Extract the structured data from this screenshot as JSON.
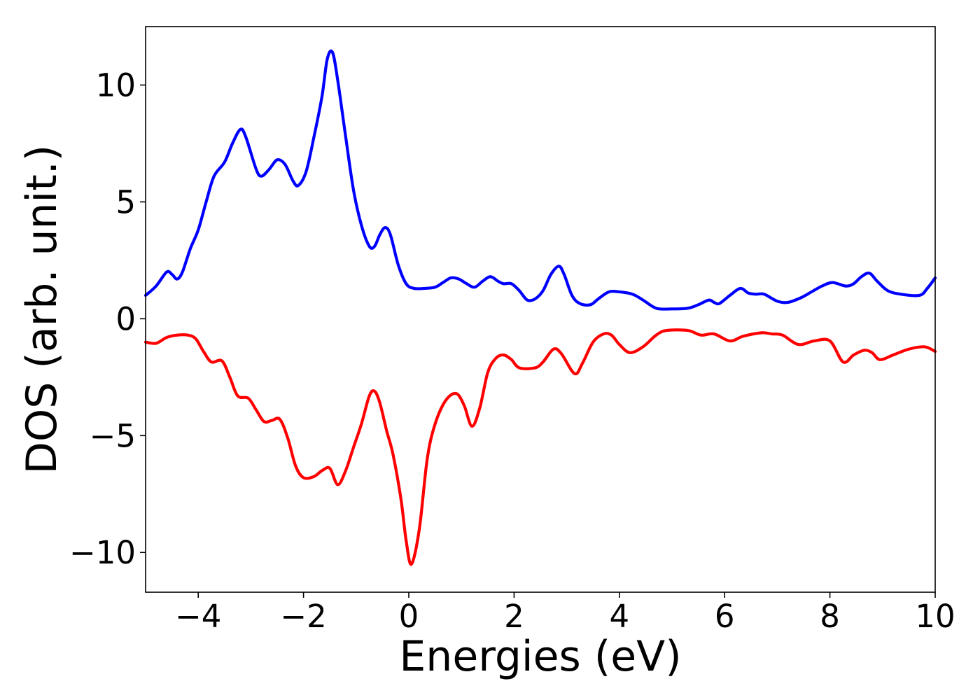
{
  "chart_data": {
    "type": "line",
    "title": "",
    "xlabel": "Energies (eV)",
    "ylabel": "DOS (arb. unit.)",
    "xlim": [
      -5,
      10
    ],
    "ylim": [
      -11.7,
      12.5
    ],
    "grid": false,
    "legend": "none",
    "x_ticks": [
      {
        "value": -4,
        "label": "−4"
      },
      {
        "value": -2,
        "label": "−2"
      },
      {
        "value": 0,
        "label": "0"
      },
      {
        "value": 2,
        "label": "2"
      },
      {
        "value": 4,
        "label": "4"
      },
      {
        "value": 6,
        "label": "6"
      },
      {
        "value": 8,
        "label": "8"
      },
      {
        "value": 10,
        "label": "10"
      }
    ],
    "y_ticks": [
      {
        "value": -10,
        "label": "−10"
      },
      {
        "value": -5,
        "label": "−5"
      },
      {
        "value": 0,
        "label": "0"
      },
      {
        "value": 5,
        "label": "5"
      },
      {
        "value": 10,
        "label": "10"
      }
    ],
    "series": [
      {
        "color": "#0000ff",
        "points": [
          [
            -5.0,
            1.0
          ],
          [
            -4.8,
            1.4
          ],
          [
            -4.6,
            2.0
          ],
          [
            -4.5,
            1.9
          ],
          [
            -4.4,
            1.7
          ],
          [
            -4.3,
            2.0
          ],
          [
            -4.15,
            3.0
          ],
          [
            -4.0,
            3.8
          ],
          [
            -3.85,
            5.0
          ],
          [
            -3.7,
            6.1
          ],
          [
            -3.5,
            6.7
          ],
          [
            -3.35,
            7.5
          ],
          [
            -3.2,
            8.1
          ],
          [
            -3.1,
            7.8
          ],
          [
            -2.9,
            6.4
          ],
          [
            -2.8,
            6.1
          ],
          [
            -2.65,
            6.4
          ],
          [
            -2.5,
            6.8
          ],
          [
            -2.35,
            6.6
          ],
          [
            -2.2,
            5.9
          ],
          [
            -2.1,
            5.7
          ],
          [
            -1.95,
            6.3
          ],
          [
            -1.8,
            7.8
          ],
          [
            -1.65,
            9.5
          ],
          [
            -1.55,
            11.1
          ],
          [
            -1.45,
            11.4
          ],
          [
            -1.35,
            10.2
          ],
          [
            -1.2,
            7.8
          ],
          [
            -1.05,
            5.5
          ],
          [
            -0.9,
            4.0
          ],
          [
            -0.75,
            3.1
          ],
          [
            -0.65,
            3.1
          ],
          [
            -0.55,
            3.6
          ],
          [
            -0.45,
            3.9
          ],
          [
            -0.35,
            3.6
          ],
          [
            -0.2,
            2.3
          ],
          [
            -0.05,
            1.5
          ],
          [
            0.1,
            1.3
          ],
          [
            0.3,
            1.3
          ],
          [
            0.5,
            1.35
          ],
          [
            0.65,
            1.55
          ],
          [
            0.8,
            1.75
          ],
          [
            0.95,
            1.7
          ],
          [
            1.1,
            1.5
          ],
          [
            1.25,
            1.35
          ],
          [
            1.4,
            1.6
          ],
          [
            1.55,
            1.8
          ],
          [
            1.7,
            1.6
          ],
          [
            1.8,
            1.5
          ],
          [
            1.95,
            1.5
          ],
          [
            2.1,
            1.2
          ],
          [
            2.25,
            0.8
          ],
          [
            2.4,
            0.85
          ],
          [
            2.55,
            1.2
          ],
          [
            2.7,
            1.9
          ],
          [
            2.85,
            2.25
          ],
          [
            2.95,
            1.9
          ],
          [
            3.1,
            1.0
          ],
          [
            3.25,
            0.65
          ],
          [
            3.45,
            0.6
          ],
          [
            3.6,
            0.85
          ],
          [
            3.8,
            1.15
          ],
          [
            4.0,
            1.15
          ],
          [
            4.25,
            1.05
          ],
          [
            4.45,
            0.8
          ],
          [
            4.7,
            0.45
          ],
          [
            5.0,
            0.42
          ],
          [
            5.3,
            0.45
          ],
          [
            5.5,
            0.6
          ],
          [
            5.7,
            0.8
          ],
          [
            5.8,
            0.7
          ],
          [
            5.9,
            0.65
          ],
          [
            6.1,
            1.0
          ],
          [
            6.3,
            1.3
          ],
          [
            6.45,
            1.1
          ],
          [
            6.6,
            1.05
          ],
          [
            6.75,
            1.05
          ],
          [
            7.0,
            0.75
          ],
          [
            7.2,
            0.7
          ],
          [
            7.45,
            0.9
          ],
          [
            7.65,
            1.15
          ],
          [
            7.85,
            1.4
          ],
          [
            8.05,
            1.55
          ],
          [
            8.3,
            1.4
          ],
          [
            8.45,
            1.5
          ],
          [
            8.6,
            1.8
          ],
          [
            8.75,
            1.95
          ],
          [
            8.9,
            1.6
          ],
          [
            9.1,
            1.2
          ],
          [
            9.35,
            1.05
          ],
          [
            9.7,
            1.0
          ],
          [
            9.85,
            1.3
          ],
          [
            10.0,
            1.75
          ]
        ]
      },
      {
        "color": "#ff0000",
        "points": [
          [
            -5.0,
            -1.0
          ],
          [
            -4.8,
            -1.05
          ],
          [
            -4.6,
            -0.8
          ],
          [
            -4.4,
            -0.7
          ],
          [
            -4.2,
            -0.7
          ],
          [
            -4.05,
            -0.85
          ],
          [
            -3.9,
            -1.4
          ],
          [
            -3.75,
            -1.85
          ],
          [
            -3.55,
            -1.8
          ],
          [
            -3.4,
            -2.5
          ],
          [
            -3.25,
            -3.3
          ],
          [
            -3.05,
            -3.4
          ],
          [
            -2.9,
            -3.9
          ],
          [
            -2.75,
            -4.4
          ],
          [
            -2.6,
            -4.35
          ],
          [
            -2.45,
            -4.3
          ],
          [
            -2.3,
            -5.1
          ],
          [
            -2.15,
            -6.3
          ],
          [
            -2.0,
            -6.8
          ],
          [
            -1.8,
            -6.75
          ],
          [
            -1.65,
            -6.5
          ],
          [
            -1.5,
            -6.4
          ],
          [
            -1.35,
            -7.1
          ],
          [
            -1.2,
            -6.5
          ],
          [
            -1.05,
            -5.5
          ],
          [
            -0.9,
            -4.5
          ],
          [
            -0.75,
            -3.3
          ],
          [
            -0.65,
            -3.1
          ],
          [
            -0.55,
            -3.6
          ],
          [
            -0.42,
            -4.8
          ],
          [
            -0.3,
            -5.8
          ],
          [
            -0.15,
            -7.7
          ],
          [
            -0.05,
            -9.5
          ],
          [
            0.05,
            -10.5
          ],
          [
            0.2,
            -9.0
          ],
          [
            0.35,
            -6.0
          ],
          [
            0.5,
            -4.5
          ],
          [
            0.7,
            -3.5
          ],
          [
            0.9,
            -3.2
          ],
          [
            1.05,
            -3.7
          ],
          [
            1.2,
            -4.6
          ],
          [
            1.35,
            -3.8
          ],
          [
            1.5,
            -2.3
          ],
          [
            1.65,
            -1.7
          ],
          [
            1.8,
            -1.55
          ],
          [
            1.95,
            -1.75
          ],
          [
            2.1,
            -2.1
          ],
          [
            2.4,
            -2.1
          ],
          [
            2.55,
            -1.85
          ],
          [
            2.75,
            -1.3
          ],
          [
            2.9,
            -1.5
          ],
          [
            3.15,
            -2.35
          ],
          [
            3.3,
            -1.9
          ],
          [
            3.5,
            -1.0
          ],
          [
            3.7,
            -0.65
          ],
          [
            3.85,
            -0.7
          ],
          [
            4.0,
            -1.1
          ],
          [
            4.2,
            -1.45
          ],
          [
            4.45,
            -1.2
          ],
          [
            4.7,
            -0.7
          ],
          [
            4.9,
            -0.5
          ],
          [
            5.3,
            -0.5
          ],
          [
            5.55,
            -0.7
          ],
          [
            5.8,
            -0.65
          ],
          [
            6.1,
            -0.95
          ],
          [
            6.35,
            -0.75
          ],
          [
            6.7,
            -0.6
          ],
          [
            6.9,
            -0.65
          ],
          [
            7.1,
            -0.7
          ],
          [
            7.4,
            -1.1
          ],
          [
            7.7,
            -0.95
          ],
          [
            8.0,
            -0.95
          ],
          [
            8.25,
            -1.85
          ],
          [
            8.45,
            -1.55
          ],
          [
            8.65,
            -1.35
          ],
          [
            8.8,
            -1.45
          ],
          [
            8.95,
            -1.75
          ],
          [
            9.2,
            -1.55
          ],
          [
            9.5,
            -1.3
          ],
          [
            9.8,
            -1.2
          ],
          [
            10.0,
            -1.4
          ]
        ]
      }
    ]
  }
}
